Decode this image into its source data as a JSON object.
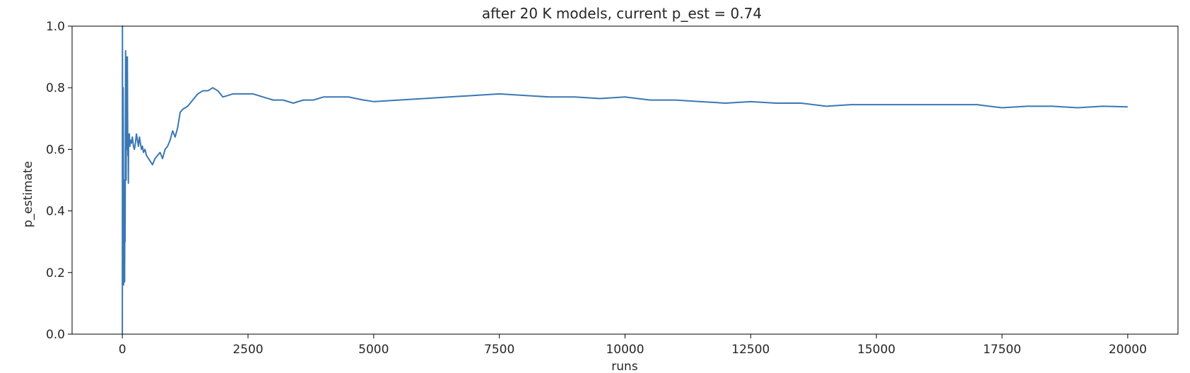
{
  "chart_data": {
    "type": "line",
    "title": "after 20 K models, current p_est = 0.74",
    "xlabel": "runs",
    "ylabel": "p_estimate",
    "xlim": [
      -1000,
      21000
    ],
    "ylim": [
      0,
      1
    ],
    "xticks": [
      0,
      2500,
      5000,
      7500,
      10000,
      12500,
      15000,
      17500,
      20000
    ],
    "yticks": [
      0.0,
      0.2,
      0.4,
      0.6,
      0.8,
      1.0
    ],
    "grid": false,
    "series": [
      {
        "color": "#3a78b4",
        "x": [
          0,
          2,
          5,
          8,
          12,
          16,
          20,
          25,
          30,
          35,
          40,
          45,
          50,
          55,
          60,
          65,
          70,
          75,
          80,
          85,
          90,
          95,
          100,
          105,
          110,
          115,
          120,
          125,
          130,
          140,
          150,
          160,
          180,
          200,
          220,
          240,
          260,
          280,
          300,
          320,
          340,
          360,
          380,
          400,
          420,
          450,
          480,
          520,
          560,
          600,
          650,
          700,
          750,
          800,
          850,
          900,
          950,
          1000,
          1050,
          1100,
          1150,
          1200,
          1300,
          1400,
          1500,
          1600,
          1700,
          1800,
          1900,
          2000,
          2200,
          2400,
          2600,
          2800,
          3000,
          3200,
          3400,
          3600,
          3800,
          4000,
          4200,
          4500,
          4800,
          5000,
          5500,
          6000,
          6500,
          7000,
          7500,
          8000,
          8500,
          9000,
          9500,
          10000,
          10500,
          11000,
          11500,
          12000,
          12500,
          13000,
          13500,
          14000,
          14500,
          15000,
          15500,
          16000,
          16500,
          17000,
          17500,
          18000,
          18500,
          19000,
          19500,
          20000
        ],
        "y": [
          0.0,
          1.0,
          0.5,
          0.33,
          0.25,
          0.8,
          0.6,
          0.16,
          0.4,
          0.18,
          0.5,
          0.17,
          0.37,
          0.3,
          0.6,
          0.92,
          0.7,
          0.5,
          0.9,
          0.6,
          0.85,
          0.65,
          0.9,
          0.7,
          0.58,
          0.65,
          0.49,
          0.64,
          0.63,
          0.65,
          0.61,
          0.63,
          0.62,
          0.64,
          0.61,
          0.6,
          0.62,
          0.65,
          0.63,
          0.61,
          0.64,
          0.62,
          0.6,
          0.61,
          0.59,
          0.6,
          0.58,
          0.57,
          0.56,
          0.55,
          0.57,
          0.58,
          0.59,
          0.57,
          0.6,
          0.61,
          0.63,
          0.66,
          0.64,
          0.67,
          0.72,
          0.73,
          0.74,
          0.76,
          0.78,
          0.79,
          0.79,
          0.8,
          0.79,
          0.77,
          0.78,
          0.78,
          0.78,
          0.77,
          0.76,
          0.76,
          0.75,
          0.76,
          0.76,
          0.77,
          0.77,
          0.77,
          0.76,
          0.755,
          0.76,
          0.765,
          0.77,
          0.775,
          0.78,
          0.775,
          0.77,
          0.77,
          0.765,
          0.77,
          0.76,
          0.76,
          0.755,
          0.75,
          0.755,
          0.75,
          0.75,
          0.74,
          0.745,
          0.745,
          0.745,
          0.745,
          0.745,
          0.745,
          0.735,
          0.74,
          0.74,
          0.735,
          0.74,
          0.738
        ]
      }
    ]
  }
}
